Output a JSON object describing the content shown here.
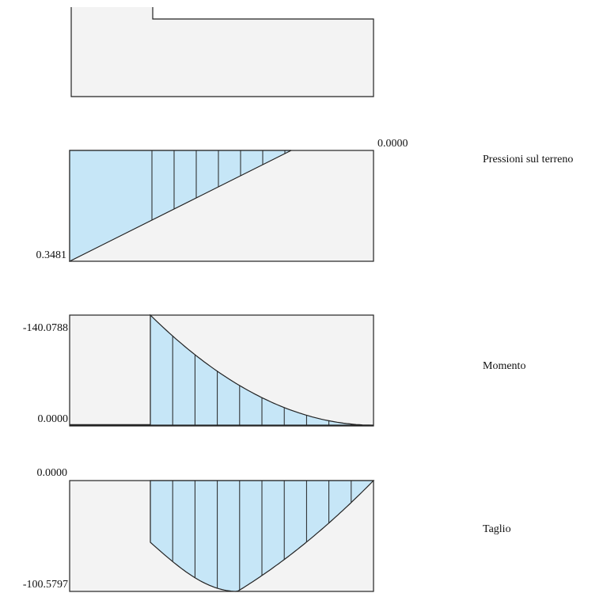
{
  "colors": {
    "fill": "#c6e6f7",
    "background_panel": "#f3f3f3",
    "stroke": "#222222"
  },
  "pressure": {
    "title": "Pressioni sul terreno",
    "value_top": "0.0000",
    "value_bottom": "0.3481"
  },
  "moment": {
    "title": "Momento",
    "value_top": "-140.0788",
    "value_bottom": "0.0000"
  },
  "shear": {
    "title": "Taglio",
    "value_top": "0.0000",
    "value_bottom": "-100.5797"
  }
}
